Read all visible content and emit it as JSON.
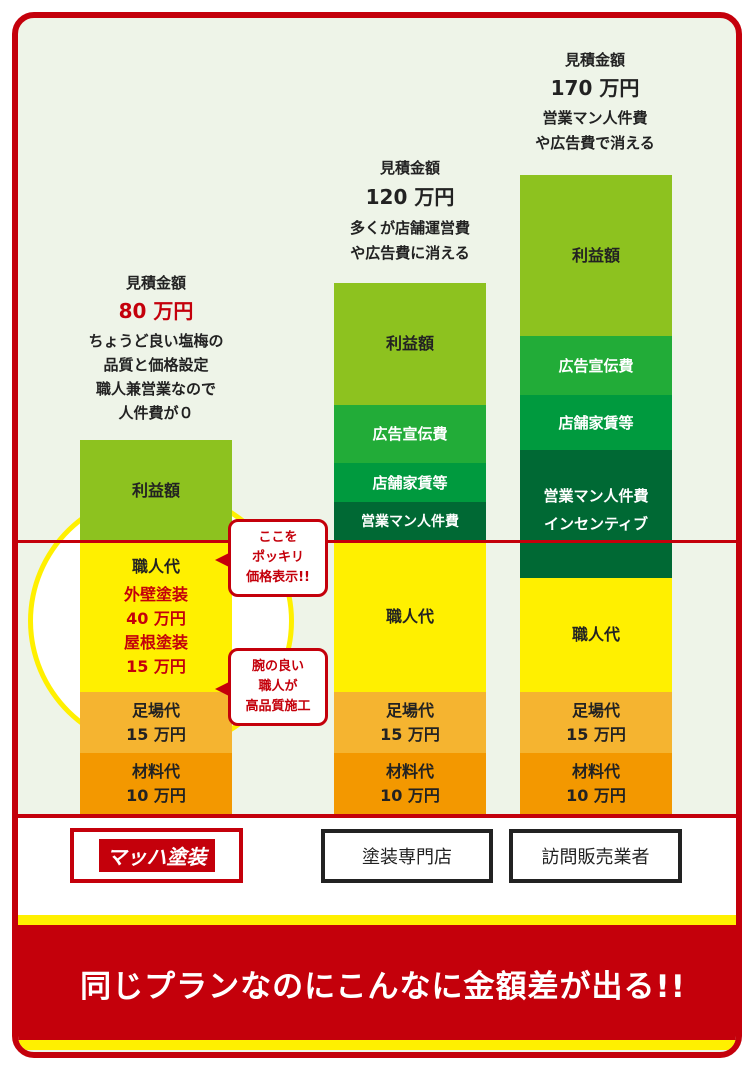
{
  "columns": [
    {
      "estimate_label": "見積金額",
      "amount": "80 万円",
      "notes": [
        "ちょうど良い塩梅の",
        "品質と価格設定",
        "職人兼営業なので",
        "人件費が０"
      ],
      "segments": {
        "profit": "利益額",
        "labor": "職人代",
        "labor_detail": [
          "外壁塗装",
          "40 万円",
          "屋根塗装",
          "15 万円"
        ],
        "scaffold": [
          "足場代",
          "15 万円"
        ],
        "material": [
          "材料代",
          "10 万円"
        ]
      }
    },
    {
      "estimate_label": "見積金額",
      "amount": "120 万円",
      "notes": [
        "多くが店舗運営費",
        "や広告費に消える"
      ],
      "segments": {
        "profit": "利益額",
        "advertising": "広告宣伝費",
        "rent": "店舗家賃等",
        "sales_staff": "営業マン人件費",
        "labor": "職人代",
        "scaffold": [
          "足場代",
          "15 万円"
        ],
        "material": [
          "材料代",
          "10 万円"
        ]
      }
    },
    {
      "estimate_label": "見積金額",
      "amount": "170 万円",
      "notes": [
        "営業マン人件費",
        "や広告費で消える"
      ],
      "segments": {
        "profit": "利益額",
        "advertising": "広告宣伝費",
        "rent": "店舗家賃等",
        "sales_staff": [
          "営業マン人件費",
          "インセンティブ"
        ],
        "labor": "職人代",
        "scaffold": [
          "足場代",
          "15 万円"
        ],
        "material": [
          "材料代",
          "10 万円"
        ]
      }
    }
  ],
  "bubbles": [
    [
      "ここを",
      "ポッキリ",
      "価格表示!!"
    ],
    [
      "腕の良い",
      "職人が",
      "高品質施工"
    ]
  ],
  "footer": {
    "logo_text": "マッハ塗装",
    "labels": [
      "塗装専門店",
      "訪問販売業者"
    ],
    "banner": "同じプランなのにこんなに金額差が出る!!"
  },
  "colors": {
    "red": "#c4000b",
    "profit": "#8dc21f",
    "advertising": "#22ac38",
    "rent": "#009a3e",
    "sales_staff": "#006934",
    "labor": "#fff000",
    "scaffold": "#f5b430",
    "material": "#f39800"
  }
}
